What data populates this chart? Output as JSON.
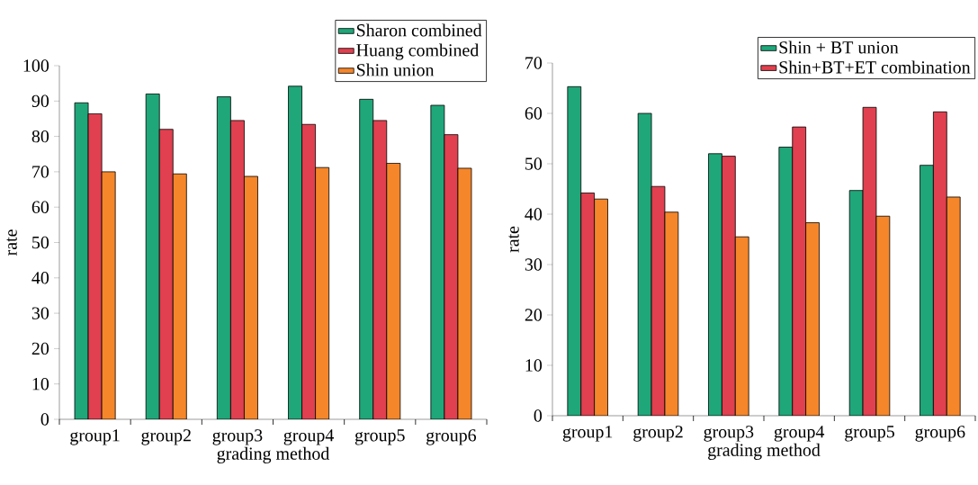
{
  "chart_data": [
    {
      "type": "bar",
      "categories": [
        "group1",
        "group2",
        "group3",
        "group4",
        "group5",
        "group6"
      ],
      "xlabel": "grading method",
      "ylabel": "rate",
      "ylim": [
        0,
        100
      ],
      "yticks": [
        0,
        10,
        20,
        30,
        40,
        50,
        60,
        70,
        80,
        90,
        100
      ],
      "legend": "top right",
      "series": [
        {
          "name": "Sharon combined",
          "color": "#1fa77a",
          "values": [
            89.5,
            92,
            91.2,
            94.2,
            90.5,
            88.8
          ]
        },
        {
          "name": "Huang combined",
          "color": "#e0404f",
          "values": [
            86.4,
            82,
            84.5,
            83.4,
            84.5,
            80.5
          ]
        },
        {
          "name": "Shin union",
          "color": "#f5862a",
          "values": [
            70,
            69.4,
            68.7,
            71.2,
            72.4,
            71
          ]
        }
      ]
    },
    {
      "type": "bar",
      "categories": [
        "group1",
        "group2",
        "group3",
        "group4",
        "group5",
        "group6"
      ],
      "xlabel": "grading method",
      "ylabel": "rate",
      "ylim": [
        0,
        70
      ],
      "yticks": [
        0,
        10,
        20,
        30,
        40,
        50,
        60,
        70
      ],
      "legend": "top right",
      "series": [
        {
          "name": "Shin + BT union",
          "color": "#1fa77a",
          "values": [
            65.3,
            60,
            52,
            53.3,
            44.7,
            49.7
          ]
        },
        {
          "name": "Shin+BT+ET combination",
          "color": "#e0404f",
          "values": [
            44.2,
            45.5,
            51.5,
            57.3,
            61.2,
            60.3
          ]
        },
        {
          "color": "#f5862a",
          "values": [
            43,
            40.4,
            35.5,
            38.3,
            39.6,
            43.4
          ]
        }
      ]
    }
  ]
}
